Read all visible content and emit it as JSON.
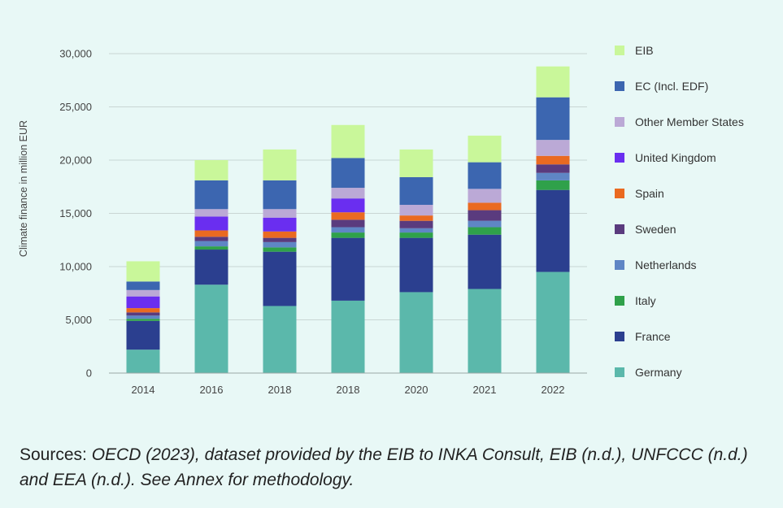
{
  "chart_data": {
    "type": "bar",
    "stacked": true,
    "ylabel": "Climate finance in million EUR",
    "xlabel": "",
    "ylim": [
      0,
      30000
    ],
    "yticks": [
      0,
      5000,
      10000,
      15000,
      20000,
      25000,
      30000
    ],
    "ytick_labels": [
      "0",
      "5,000",
      "10,000",
      "15,000",
      "20,000",
      "25,000",
      "30,000"
    ],
    "grid": "horizontal",
    "legend_position": "right",
    "categories": [
      "2014",
      "2016",
      "2018",
      "2018",
      "2020",
      "2021",
      "2022"
    ],
    "series": [
      {
        "name": "Germany",
        "color": "#5bb8ab",
        "values": [
          2200,
          8300,
          6300,
          6800,
          7600,
          7900,
          9500
        ]
      },
      {
        "name": "France",
        "color": "#2b3f8f",
        "values": [
          2700,
          3300,
          5100,
          5900,
          5100,
          5100,
          7700
        ]
      },
      {
        "name": "Italy",
        "color": "#2fa14a",
        "values": [
          200,
          300,
          400,
          500,
          500,
          700,
          900
        ]
      },
      {
        "name": "Netherlands",
        "color": "#5f86c5",
        "values": [
          300,
          500,
          500,
          500,
          400,
          600,
          700
        ]
      },
      {
        "name": "Sweden",
        "color": "#5a3b7e",
        "values": [
          300,
          400,
          400,
          700,
          700,
          1000,
          800
        ]
      },
      {
        "name": "Spain",
        "color": "#ea6a21",
        "values": [
          400,
          600,
          600,
          700,
          500,
          700,
          800
        ]
      },
      {
        "name": "United Kingdom",
        "color": "#6a2ef0",
        "values": [
          1100,
          1300,
          1300,
          1300,
          0,
          0,
          0
        ]
      },
      {
        "name": "Other Member States",
        "color": "#bba9d6",
        "values": [
          600,
          700,
          800,
          1000,
          1000,
          1300,
          1500
        ]
      },
      {
        "name": "EC (Incl. EDF)",
        "color": "#3c66b0",
        "values": [
          800,
          2700,
          2700,
          2800,
          2600,
          2500,
          4000
        ]
      },
      {
        "name": "EIB",
        "color": "#c9f79a",
        "values": [
          1900,
          1900,
          2900,
          3100,
          2600,
          2500,
          2900
        ]
      }
    ]
  },
  "source": {
    "label": "Sources: ",
    "text": "OECD (2023), dataset provided by the EIB to INKA Consult, EIB (n.d.), UNFCCC (n.d.) and EEA (n.d.). See Annex for methodology."
  }
}
